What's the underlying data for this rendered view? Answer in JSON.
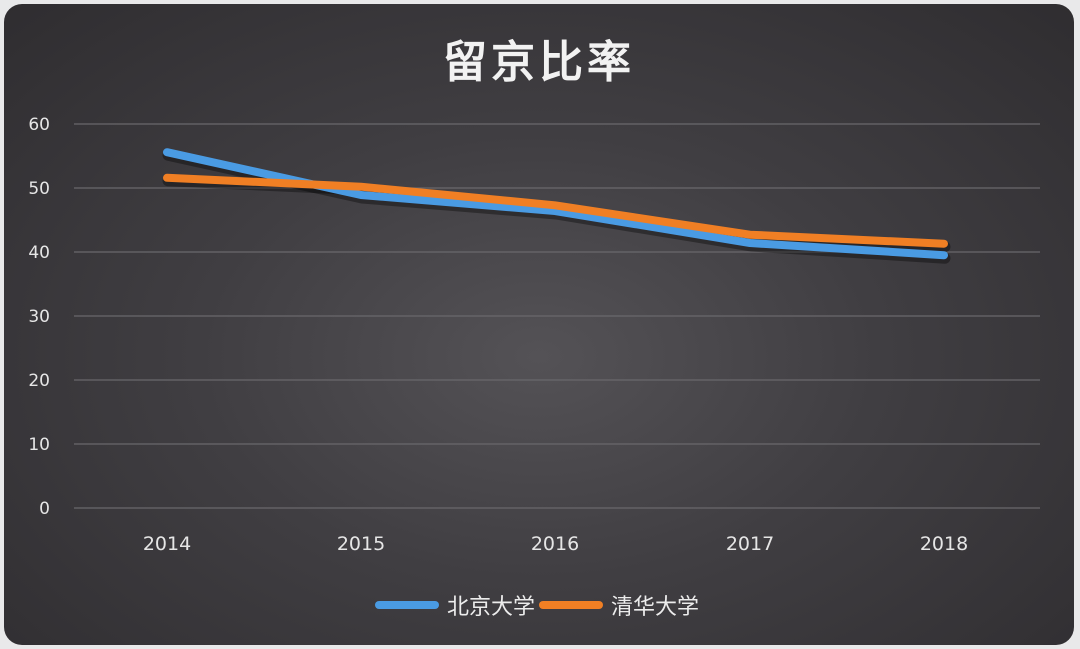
{
  "chart_data": {
    "type": "line",
    "title": "留京比率",
    "xlabel": "",
    "ylabel": "",
    "categories": [
      "2014",
      "2015",
      "2016",
      "2017",
      "2018"
    ],
    "series": [
      {
        "name": "北京大学",
        "color": "#4a9be3",
        "values": [
          55.6,
          48.9,
          46.4,
          41.4,
          39.5
        ]
      },
      {
        "name": "清华大学",
        "color": "#f07f24",
        "values": [
          51.6,
          50.2,
          47.3,
          42.7,
          41.3
        ]
      }
    ],
    "yticks": [
      "0",
      "10",
      "20",
      "30",
      "40",
      "50",
      "60"
    ],
    "ylim": [
      0,
      60
    ],
    "grid": true,
    "legend_position": "bottom"
  },
  "legend": {
    "items": [
      {
        "label": "北京大学",
        "color": "#4a9be3"
      },
      {
        "label": "清华大学",
        "color": "#f07f24"
      }
    ]
  }
}
